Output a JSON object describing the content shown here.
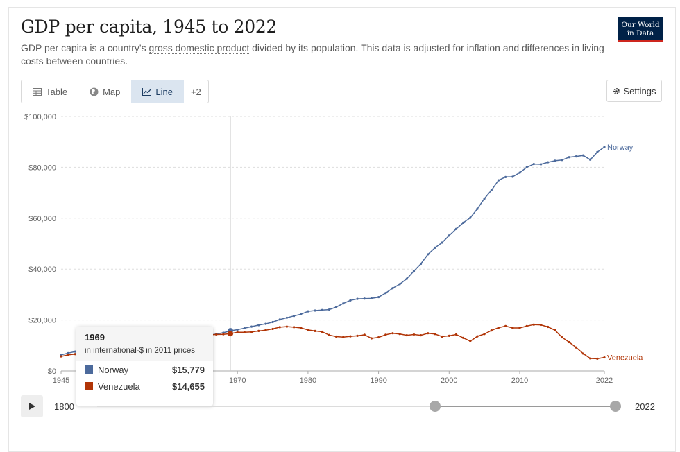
{
  "header": {
    "title": "GDP per capita, 1945 to 2022",
    "subtitle_before": "GDP per capita is a country's ",
    "subtitle_link": "gross domestic product",
    "subtitle_after": " divided by its population. This data is adjusted for inflation and differences in living costs between countries.",
    "logo_line1": "Our World",
    "logo_line2": "in Data"
  },
  "tabs": [
    {
      "label": "Table",
      "icon": "table-icon"
    },
    {
      "label": "Map",
      "icon": "globe-icon"
    },
    {
      "label": "Line",
      "icon": "line-chart-icon",
      "active": true
    },
    {
      "label": "+2"
    }
  ],
  "settings_label": "Settings",
  "tooltip": {
    "year": "1969",
    "unit": "in international-$ in 2011 prices",
    "rows": [
      {
        "name": "Norway",
        "value": "$15,779",
        "color": "#4c6a9c"
      },
      {
        "name": "Venezuela",
        "value": "$14,655",
        "color": "#b13507"
      }
    ]
  },
  "timeline": {
    "start_label": "1800",
    "end_label": "2022",
    "range_start": 1945,
    "range_end": 2022
  },
  "chart_data": {
    "type": "line",
    "xlim": [
      1945,
      2022
    ],
    "ylim": [
      0,
      100000
    ],
    "y_ticks": [
      0,
      20000,
      40000,
      60000,
      80000,
      100000
    ],
    "y_tick_labels": [
      "$0",
      "$20,000",
      "$40,000",
      "$60,000",
      "$80,000",
      "$100,000"
    ],
    "x_ticks": [
      1945,
      1970,
      1980,
      1990,
      2000,
      2010,
      2022
    ],
    "x_tick_labels": [
      "1945",
      "1970",
      "1980",
      "1990",
      "2000",
      "2010",
      "2022"
    ],
    "grid": "horizontal dashed",
    "hover_year": 1969,
    "series": [
      {
        "name": "Norway",
        "color": "#4c6a9c",
        "x": [
          1945,
          1946,
          1947,
          1948,
          1949,
          1950,
          1951,
          1952,
          1953,
          1954,
          1955,
          1956,
          1957,
          1958,
          1959,
          1960,
          1961,
          1962,
          1963,
          1964,
          1965,
          1966,
          1967,
          1968,
          1969,
          1970,
          1971,
          1972,
          1973,
          1974,
          1975,
          1976,
          1977,
          1978,
          1979,
          1980,
          1981,
          1982,
          1983,
          1984,
          1985,
          1986,
          1987,
          1988,
          1989,
          1990,
          1991,
          1992,
          1993,
          1994,
          1995,
          1996,
          1997,
          1998,
          1999,
          2000,
          2001,
          2002,
          2003,
          2004,
          2005,
          2006,
          2007,
          2008,
          2009,
          2010,
          2011,
          2012,
          2013,
          2014,
          2015,
          2016,
          2017,
          2018,
          2019,
          2020,
          2021,
          2022
        ],
        "values": [
          6300,
          7000,
          7600,
          8000,
          8300,
          8600,
          8900,
          9100,
          9400,
          9800,
          10000,
          10300,
          10600,
          10700,
          11000,
          11400,
          11900,
          12200,
          12600,
          13100,
          13600,
          14000,
          14500,
          15000,
          15779,
          16200,
          16800,
          17400,
          18000,
          18500,
          19200,
          20200,
          20900,
          21600,
          22300,
          23400,
          23700,
          23900,
          24100,
          25100,
          26500,
          27700,
          28300,
          28400,
          28500,
          29000,
          30600,
          32500,
          34100,
          36200,
          39200,
          42100,
          45800,
          48400,
          50400,
          53200,
          55800,
          58200,
          60200,
          63700,
          67700,
          71000,
          74900,
          76200,
          76300,
          77900,
          80000,
          81300,
          81200,
          82000,
          82600,
          82900,
          84000,
          84300,
          84700,
          83000,
          86000,
          88000
        ]
      },
      {
        "name": "Venezuela",
        "color": "#b13507",
        "x": [
          1945,
          1946,
          1947,
          1948,
          1949,
          1950,
          1951,
          1952,
          1953,
          1954,
          1955,
          1956,
          1957,
          1958,
          1959,
          1960,
          1961,
          1962,
          1963,
          1964,
          1965,
          1966,
          1967,
          1968,
          1969,
          1970,
          1971,
          1972,
          1973,
          1974,
          1975,
          1976,
          1977,
          1978,
          1979,
          1980,
          1981,
          1982,
          1983,
          1984,
          1985,
          1986,
          1987,
          1988,
          1989,
          1990,
          1991,
          1992,
          1993,
          1994,
          1995,
          1996,
          1997,
          1998,
          1999,
          2000,
          2001,
          2002,
          2003,
          2004,
          2005,
          2006,
          2007,
          2008,
          2009,
          2010,
          2011,
          2012,
          2013,
          2014,
          2015,
          2016,
          2017,
          2018,
          2019,
          2020,
          2021,
          2022
        ],
        "values": [
          5700,
          6300,
          6600,
          7000,
          7300,
          7700,
          8000,
          8400,
          8900,
          9400,
          10000,
          10600,
          11200,
          11700,
          12000,
          12400,
          12600,
          13000,
          13400,
          13800,
          14000,
          14200,
          14300,
          14400,
          14655,
          15200,
          15200,
          15300,
          15700,
          16000,
          16500,
          17200,
          17400,
          17200,
          16900,
          16100,
          15700,
          15400,
          14100,
          13500,
          13300,
          13600,
          13800,
          14200,
          12800,
          13200,
          14200,
          14800,
          14500,
          14000,
          14300,
          14000,
          14800,
          14500,
          13500,
          13800,
          14300,
          13000,
          11700,
          13600,
          14500,
          15900,
          17000,
          17600,
          16900,
          16900,
          17600,
          18200,
          18100,
          17300,
          16000,
          13200,
          11300,
          9200,
          6800,
          4900,
          4800,
          5300
        ]
      }
    ]
  }
}
